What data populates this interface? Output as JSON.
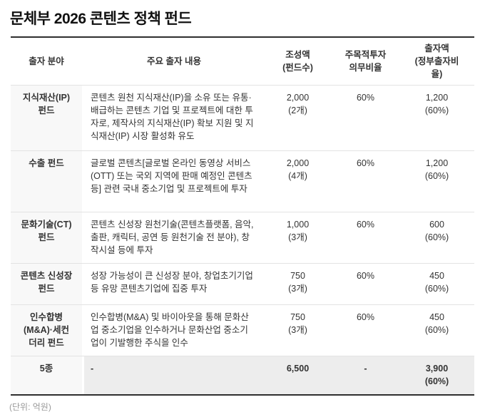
{
  "page": {
    "title": "문체부 2026 콘텐츠 정책 펀드",
    "clipped_caption": "(단위: 억원)"
  },
  "colors": {
    "title_text": "#111111",
    "body_text": "#333333",
    "table_border": "#2e2e2e",
    "row_divider": "#e3e3e3",
    "field_column_bg": "#f8f8f8",
    "summary_row_bg": "#ededed"
  },
  "table": {
    "headers": {
      "field": "출자 분야",
      "description": "주요 출자 내용",
      "amount": "조성액\n(펀드수)",
      "ratio": "주목적투자\n의무비율",
      "investment": "출자액\n(정부출자비\n율)"
    },
    "rows": [
      {
        "field": "지식재산(IP)\n펀드",
        "description": "콘텐츠 원천 지식재산(IP)을 소유 또는 유통·배급하는 콘텐츠 기업 및 프로젝트에 대한 투자로, 제작사의 지식재산(IP) 확보 지원 및 지식재산(IP) 시장 활성화 유도",
        "amount": "2,000\n(2개)",
        "ratio": "60%",
        "investment": "1,200\n(60%)"
      },
      {
        "field": "수출 펀드",
        "description": "글로벌 콘텐츠[글로벌 온라인 동영상 서비스(OTT) 또는 국외 지역에 판매 예정인 콘텐츠 등] 관련 국내 중소기업 및 프로젝트에 투자",
        "amount": "2,000\n(4개)",
        "ratio": "60%",
        "investment": "1,200\n(60%)"
      },
      {
        "field": "문화기술(CT)\n펀드",
        "description": "콘텐츠 신성장 원천기술(콘텐츠플랫폼, 음악, 출판, 캐릭터, 공연 등 원천기술 전 분야), 창작시설 등에 투자",
        "amount": "1,000\n(3개)",
        "ratio": "60%",
        "investment": "600\n(60%)"
      },
      {
        "field": "콘텐츠 신성장\n펀드",
        "description": "성장 가능성이 큰 신성장 분야, 창업초기기업 등 유망 콘텐츠기업에 집중 투자",
        "amount": "750\n(3개)",
        "ratio": "60%",
        "investment": "450\n(60%)"
      },
      {
        "field": "인수합병\n(M&A)·세컨\n더리 펀드",
        "description": "인수합병(M&A) 및 바이아웃을 통해 문화산업 중소기업을 인수하거나 문화산업 중소기업이 기발행한 주식을 인수",
        "amount": "750\n(3개)",
        "ratio": "60%",
        "investment": "450\n(60%)"
      }
    ],
    "summary": {
      "field": "5종",
      "description": "-",
      "amount": "6,500",
      "ratio": "-",
      "investment": "3,900\n(60%)"
    }
  },
  "chart_data": {
    "type": "table",
    "title": "문체부 2026 콘텐츠 정책 펀드",
    "columns": [
      "출자 분야",
      "주요 출자 내용",
      "조성액 (펀드수)",
      "주목적투자 의무비율",
      "출자액 (정부출자비율)"
    ],
    "rows": [
      [
        "지식재산(IP) 펀드",
        "콘텐츠 원천 지식재산(IP)을 소유 또는 유통·배급하는 콘텐츠 기업 및 프로젝트에 대한 투자로, 제작사의 지식재산(IP) 확보 지원 및 지식재산(IP) 시장 활성화 유도",
        "2,000 (2개)",
        "60%",
        "1,200 (60%)"
      ],
      [
        "수출 펀드",
        "글로벌 콘텐츠[글로벌 온라인 동영상 서비스(OTT) 또는 국외 지역에 판매 예정인 콘텐츠 등] 관련 국내 중소기업 및 프로젝트에 투자",
        "2,000 (4개)",
        "60%",
        "1,200 (60%)"
      ],
      [
        "문화기술(CT) 펀드",
        "콘텐츠 신성장 원천기술(콘텐츠플랫폼, 음악, 출판, 캐릭터, 공연 등 원천기술 전 분야), 창작시설 등에 투자",
        "1,000 (3개)",
        "60%",
        "600 (60%)"
      ],
      [
        "콘텐츠 신성장 펀드",
        "성장 가능성이 큰 신성장 분야, 창업초기기업 등 유망 콘텐츠기업에 집중 투자",
        "750 (3개)",
        "60%",
        "450 (60%)"
      ],
      [
        "인수합병(M&A)·세컨더리 펀드",
        "인수합병(M&A) 및 바이아웃을 통해 문화산업 중소기업을 인수하거나 문화산업 중소기업이 기발행한 주식을 인수",
        "750 (3개)",
        "60%",
        "450 (60%)"
      ],
      [
        "5종",
        "-",
        "6,500",
        "-",
        "3,900 (60%)"
      ]
    ],
    "units": "억원",
    "total_funds": "6,500",
    "total_government_investment": "3,900 (60%)"
  }
}
